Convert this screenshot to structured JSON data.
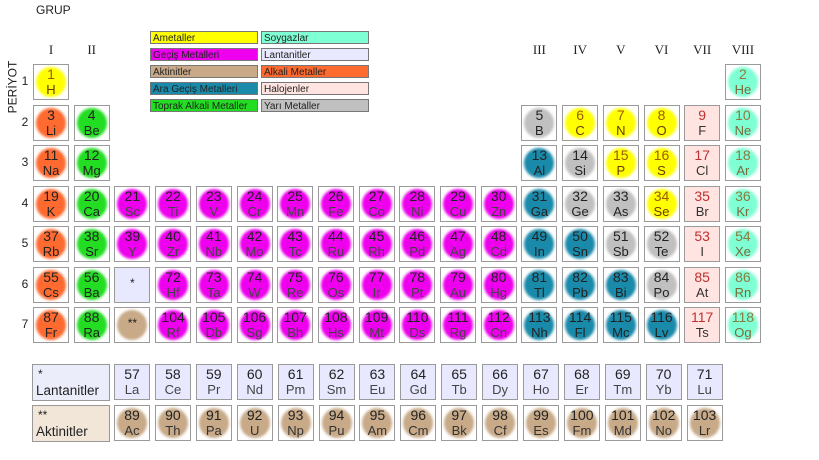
{
  "header": {
    "grup": "GRUP",
    "periyot": "PERİYOT"
  },
  "colors": {
    "ametal": "#ffff00",
    "soygaz": "#7fffd4",
    "gecis": "#ee00ee",
    "lantanit": "#e8e8ff",
    "aktinit": "#c8aa88",
    "alkali": "#ff6a30",
    "ara_gecis": "#1a8aaa",
    "halojen": "#ffe4e1",
    "toprak_alkali": "#22dd22",
    "yari_metal": "#c0c0c0"
  },
  "legend": [
    {
      "label": "Ametaller",
      "color": "#ffff00"
    },
    {
      "label": "Soygazlar",
      "color": "#7fffd4"
    },
    {
      "label": "Geçiş Metalleri",
      "color": "#ee00ee"
    },
    {
      "label": "Lantanitler",
      "color": "#e8e8ff"
    },
    {
      "label": "Aktinitler",
      "color": "#c8aa88"
    },
    {
      "label": "Alkali Metaller",
      "color": "#ff6a30"
    },
    {
      "label": "Ara Geçiş Metalleri",
      "color": "#1a8aaa"
    },
    {
      "label": "Halojenler",
      "color": "#ffe4e1"
    },
    {
      "label": "Toprak Alkali Metaller",
      "color": "#22dd22"
    },
    {
      "label": "Yarı Metaller",
      "color": "#c0c0c0"
    }
  ],
  "groups": [
    {
      "label": "I",
      "col": 1
    },
    {
      "label": "II",
      "col": 2
    },
    {
      "label": "III",
      "col": 13
    },
    {
      "label": "IV",
      "col": 14
    },
    {
      "label": "V",
      "col": 15
    },
    {
      "label": "VI",
      "col": 16
    },
    {
      "label": "VII",
      "col": 17
    },
    {
      "label": "VIII",
      "col": 18
    }
  ],
  "periods": [
    "1",
    "2",
    "3",
    "4",
    "5",
    "6",
    "7"
  ],
  "elements": [
    {
      "n": "1",
      "s": "H",
      "c": 1,
      "r": 1,
      "t": "ametal"
    },
    {
      "n": "2",
      "s": "He",
      "c": 18,
      "r": 1,
      "t": "soygaz"
    },
    {
      "n": "3",
      "s": "Li",
      "c": 1,
      "r": 2,
      "t": "alkali"
    },
    {
      "n": "4",
      "s": "Be",
      "c": 2,
      "r": 2,
      "t": "toprak_alkali"
    },
    {
      "n": "5",
      "s": "B",
      "c": 13,
      "r": 2,
      "t": "yari_metal"
    },
    {
      "n": "6",
      "s": "C",
      "c": 14,
      "r": 2,
      "t": "ametal"
    },
    {
      "n": "7",
      "s": "N",
      "c": 15,
      "r": 2,
      "t": "ametal"
    },
    {
      "n": "8",
      "s": "O",
      "c": 16,
      "r": 2,
      "t": "ametal"
    },
    {
      "n": "9",
      "s": "F",
      "c": 17,
      "r": 2,
      "t": "halojen"
    },
    {
      "n": "10",
      "s": "Ne",
      "c": 18,
      "r": 2,
      "t": "soygaz"
    },
    {
      "n": "11",
      "s": "Na",
      "c": 1,
      "r": 3,
      "t": "alkali"
    },
    {
      "n": "12",
      "s": "Mg",
      "c": 2,
      "r": 3,
      "t": "toprak_alkali"
    },
    {
      "n": "13",
      "s": "Al",
      "c": 13,
      "r": 3,
      "t": "ara_gecis"
    },
    {
      "n": "14",
      "s": "Si",
      "c": 14,
      "r": 3,
      "t": "yari_metal"
    },
    {
      "n": "15",
      "s": "P",
      "c": 15,
      "r": 3,
      "t": "ametal"
    },
    {
      "n": "16",
      "s": "S",
      "c": 16,
      "r": 3,
      "t": "ametal"
    },
    {
      "n": "17",
      "s": "Cl",
      "c": 17,
      "r": 3,
      "t": "halojen"
    },
    {
      "n": "18",
      "s": "Ar",
      "c": 18,
      "r": 3,
      "t": "soygaz"
    },
    {
      "n": "19",
      "s": "K",
      "c": 1,
      "r": 4,
      "t": "alkali"
    },
    {
      "n": "20",
      "s": "Ca",
      "c": 2,
      "r": 4,
      "t": "toprak_alkali"
    },
    {
      "n": "21",
      "s": "Sc",
      "c": 3,
      "r": 4,
      "t": "gecis"
    },
    {
      "n": "22",
      "s": "Ti",
      "c": 4,
      "r": 4,
      "t": "gecis"
    },
    {
      "n": "23",
      "s": "V",
      "c": 5,
      "r": 4,
      "t": "gecis"
    },
    {
      "n": "24",
      "s": "Cr",
      "c": 6,
      "r": 4,
      "t": "gecis"
    },
    {
      "n": "25",
      "s": "Mn",
      "c": 7,
      "r": 4,
      "t": "gecis"
    },
    {
      "n": "26",
      "s": "Fe",
      "c": 8,
      "r": 4,
      "t": "gecis"
    },
    {
      "n": "27",
      "s": "Co",
      "c": 9,
      "r": 4,
      "t": "gecis"
    },
    {
      "n": "28",
      "s": "Ni",
      "c": 10,
      "r": 4,
      "t": "gecis"
    },
    {
      "n": "29",
      "s": "Cu",
      "c": 11,
      "r": 4,
      "t": "gecis"
    },
    {
      "n": "30",
      "s": "Zn",
      "c": 12,
      "r": 4,
      "t": "gecis"
    },
    {
      "n": "31",
      "s": "Ga",
      "c": 13,
      "r": 4,
      "t": "ara_gecis"
    },
    {
      "n": "32",
      "s": "Ge",
      "c": 14,
      "r": 4,
      "t": "yari_metal"
    },
    {
      "n": "33",
      "s": "As",
      "c": 15,
      "r": 4,
      "t": "yari_metal"
    },
    {
      "n": "34",
      "s": "Se",
      "c": 16,
      "r": 4,
      "t": "ametal"
    },
    {
      "n": "35",
      "s": "Br",
      "c": 17,
      "r": 4,
      "t": "halojen"
    },
    {
      "n": "36",
      "s": "Kr",
      "c": 18,
      "r": 4,
      "t": "soygaz"
    },
    {
      "n": "37",
      "s": "Rb",
      "c": 1,
      "r": 5,
      "t": "alkali"
    },
    {
      "n": "38",
      "s": "Sr",
      "c": 2,
      "r": 5,
      "t": "toprak_alkali"
    },
    {
      "n": "39",
      "s": "Y",
      "c": 3,
      "r": 5,
      "t": "gecis"
    },
    {
      "n": "40",
      "s": "Zr",
      "c": 4,
      "r": 5,
      "t": "gecis"
    },
    {
      "n": "41",
      "s": "Nb",
      "c": 5,
      "r": 5,
      "t": "gecis"
    },
    {
      "n": "42",
      "s": "Mo",
      "c": 6,
      "r": 5,
      "t": "gecis"
    },
    {
      "n": "43",
      "s": "Tc",
      "c": 7,
      "r": 5,
      "t": "gecis"
    },
    {
      "n": "44",
      "s": "Ru",
      "c": 8,
      "r": 5,
      "t": "gecis"
    },
    {
      "n": "45",
      "s": "Rh",
      "c": 9,
      "r": 5,
      "t": "gecis"
    },
    {
      "n": "46",
      "s": "Pd",
      "c": 10,
      "r": 5,
      "t": "gecis"
    },
    {
      "n": "47",
      "s": "Ag",
      "c": 11,
      "r": 5,
      "t": "gecis"
    },
    {
      "n": "48",
      "s": "Cd",
      "c": 12,
      "r": 5,
      "t": "gecis"
    },
    {
      "n": "49",
      "s": "In",
      "c": 13,
      "r": 5,
      "t": "ara_gecis"
    },
    {
      "n": "50",
      "s": "Sn",
      "c": 14,
      "r": 5,
      "t": "ara_gecis"
    },
    {
      "n": "51",
      "s": "Sb",
      "c": 15,
      "r": 5,
      "t": "yari_metal"
    },
    {
      "n": "52",
      "s": "Te",
      "c": 16,
      "r": 5,
      "t": "yari_metal"
    },
    {
      "n": "53",
      "s": "I",
      "c": 17,
      "r": 5,
      "t": "halojen"
    },
    {
      "n": "54",
      "s": "Xe",
      "c": 18,
      "r": 5,
      "t": "soygaz"
    },
    {
      "n": "55",
      "s": "Cs",
      "c": 1,
      "r": 6,
      "t": "alkali"
    },
    {
      "n": "56",
      "s": "Ba",
      "c": 2,
      "r": 6,
      "t": "toprak_alkali"
    },
    {
      "n": "*",
      "s": "",
      "c": 3,
      "r": 6,
      "t": "lantanit"
    },
    {
      "n": "72",
      "s": "Hf",
      "c": 4,
      "r": 6,
      "t": "gecis"
    },
    {
      "n": "73",
      "s": "Ta",
      "c": 5,
      "r": 6,
      "t": "gecis"
    },
    {
      "n": "74",
      "s": "W",
      "c": 6,
      "r": 6,
      "t": "gecis"
    },
    {
      "n": "75",
      "s": "Re",
      "c": 7,
      "r": 6,
      "t": "gecis"
    },
    {
      "n": "76",
      "s": "Os",
      "c": 8,
      "r": 6,
      "t": "gecis"
    },
    {
      "n": "77",
      "s": "Ir",
      "c": 9,
      "r": 6,
      "t": "gecis"
    },
    {
      "n": "78",
      "s": "Pt",
      "c": 10,
      "r": 6,
      "t": "gecis"
    },
    {
      "n": "79",
      "s": "Au",
      "c": 11,
      "r": 6,
      "t": "gecis"
    },
    {
      "n": "80",
      "s": "Hg",
      "c": 12,
      "r": 6,
      "t": "gecis"
    },
    {
      "n": "81",
      "s": "Tl",
      "c": 13,
      "r": 6,
      "t": "ara_gecis"
    },
    {
      "n": "82",
      "s": "Pb",
      "c": 14,
      "r": 6,
      "t": "ara_gecis"
    },
    {
      "n": "83",
      "s": "Bi",
      "c": 15,
      "r": 6,
      "t": "ara_gecis"
    },
    {
      "n": "84",
      "s": "Po",
      "c": 16,
      "r": 6,
      "t": "yari_metal"
    },
    {
      "n": "85",
      "s": "At",
      "c": 17,
      "r": 6,
      "t": "halojen"
    },
    {
      "n": "86",
      "s": "Rn",
      "c": 18,
      "r": 6,
      "t": "soygaz"
    },
    {
      "n": "87",
      "s": "Fr",
      "c": 1,
      "r": 7,
      "t": "alkali"
    },
    {
      "n": "88",
      "s": "Ra",
      "c": 2,
      "r": 7,
      "t": "toprak_alkali"
    },
    {
      "n": "**",
      "s": "",
      "c": 3,
      "r": 7,
      "t": "aktinit"
    },
    {
      "n": "104",
      "s": "Rf",
      "c": 4,
      "r": 7,
      "t": "gecis"
    },
    {
      "n": "105",
      "s": "Db",
      "c": 5,
      "r": 7,
      "t": "gecis"
    },
    {
      "n": "106",
      "s": "Sg",
      "c": 6,
      "r": 7,
      "t": "gecis"
    },
    {
      "n": "107",
      "s": "Bh",
      "c": 7,
      "r": 7,
      "t": "gecis"
    },
    {
      "n": "108",
      "s": "Hs",
      "c": 8,
      "r": 7,
      "t": "gecis"
    },
    {
      "n": "109",
      "s": "Mt",
      "c": 9,
      "r": 7,
      "t": "gecis"
    },
    {
      "n": "110",
      "s": "Ds",
      "c": 10,
      "r": 7,
      "t": "gecis"
    },
    {
      "n": "111",
      "s": "Rg",
      "c": 11,
      "r": 7,
      "t": "gecis"
    },
    {
      "n": "112",
      "s": "Cn",
      "c": 12,
      "r": 7,
      "t": "gecis"
    },
    {
      "n": "113",
      "s": "Nh",
      "c": 13,
      "r": 7,
      "t": "ara_gecis"
    },
    {
      "n": "114",
      "s": "Fl",
      "c": 14,
      "r": 7,
      "t": "ara_gecis"
    },
    {
      "n": "115",
      "s": "Mc",
      "c": 15,
      "r": 7,
      "t": "ara_gecis"
    },
    {
      "n": "116",
      "s": "Lv",
      "c": 16,
      "r": 7,
      "t": "ara_gecis"
    },
    {
      "n": "117",
      "s": "Ts",
      "c": 17,
      "r": 7,
      "t": "halojen"
    },
    {
      "n": "118",
      "s": "Og",
      "c": 18,
      "r": 7,
      "t": "soygaz"
    }
  ],
  "lanthanides": {
    "star": "*",
    "label": "Lantanitler",
    "type": "lantanit",
    "items": [
      {
        "n": "57",
        "s": "La"
      },
      {
        "n": "58",
        "s": "Ce"
      },
      {
        "n": "59",
        "s": "Pr"
      },
      {
        "n": "60",
        "s": "Nd"
      },
      {
        "n": "61",
        "s": "Pm"
      },
      {
        "n": "62",
        "s": "Sm"
      },
      {
        "n": "63",
        "s": "Eu"
      },
      {
        "n": "64",
        "s": "Gd"
      },
      {
        "n": "65",
        "s": "Tb"
      },
      {
        "n": "66",
        "s": "Dy"
      },
      {
        "n": "67",
        "s": "Ho"
      },
      {
        "n": "68",
        "s": "Er"
      },
      {
        "n": "69",
        "s": "Tm"
      },
      {
        "n": "70",
        "s": "Yb"
      },
      {
        "n": "71",
        "s": "Lu"
      }
    ]
  },
  "actinides": {
    "star": "**",
    "label": "Aktinitler",
    "type": "aktinit",
    "items": [
      {
        "n": "89",
        "s": "Ac"
      },
      {
        "n": "90",
        "s": "Th"
      },
      {
        "n": "91",
        "s": "Pa"
      },
      {
        "n": "92",
        "s": "U"
      },
      {
        "n": "93",
        "s": "Np"
      },
      {
        "n": "94",
        "s": "Pu"
      },
      {
        "n": "95",
        "s": "Am"
      },
      {
        "n": "96",
        "s": "Cm"
      },
      {
        "n": "97",
        "s": "Bk"
      },
      {
        "n": "98",
        "s": "Cf"
      },
      {
        "n": "99",
        "s": "Es"
      },
      {
        "n": "100",
        "s": "Fm"
      },
      {
        "n": "101",
        "s": "Md"
      },
      {
        "n": "102",
        "s": "No"
      },
      {
        "n": "103",
        "s": "Lr"
      }
    ]
  }
}
